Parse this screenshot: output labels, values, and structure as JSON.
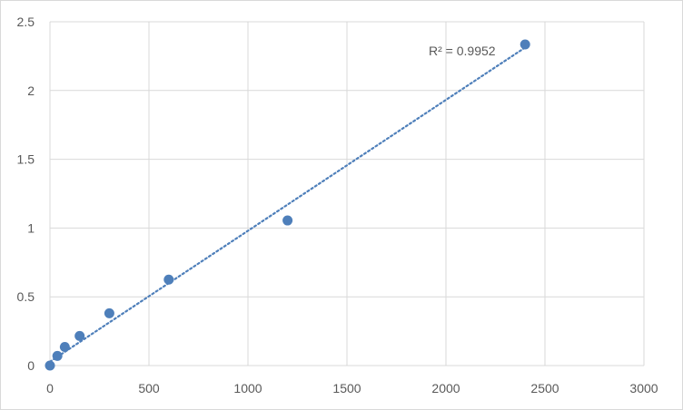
{
  "chart_data": {
    "type": "scatter",
    "title": "",
    "xlabel": "",
    "ylabel": "",
    "xlim": [
      0,
      3000
    ],
    "ylim": [
      0,
      2.5
    ],
    "x_ticks": [
      0,
      500,
      1000,
      1500,
      2000,
      2500,
      3000
    ],
    "y_ticks": [
      0,
      0.5,
      1,
      1.5,
      2,
      2.5
    ],
    "x_tick_labels": [
      "0",
      "500",
      "1000",
      "1500",
      "2000",
      "2500",
      "3000"
    ],
    "y_tick_labels": [
      "0",
      "0.5",
      "1",
      "1.5",
      "2",
      "2.5"
    ],
    "grid": true,
    "series": [
      {
        "x": [
          0,
          37.5,
          75,
          150,
          300,
          600,
          1200,
          2400
        ],
        "y": [
          0.0,
          0.07,
          0.135,
          0.215,
          0.38,
          0.625,
          1.055,
          2.335
        ],
        "color": "#4e7fba"
      }
    ],
    "trendline": {
      "type": "linear",
      "style": "dotted",
      "color": "#4e7fba",
      "x_range": [
        0,
        2400
      ],
      "slope": 0.000952,
      "intercept": 0.028,
      "r2_label": "R² = 0.9952"
    }
  }
}
